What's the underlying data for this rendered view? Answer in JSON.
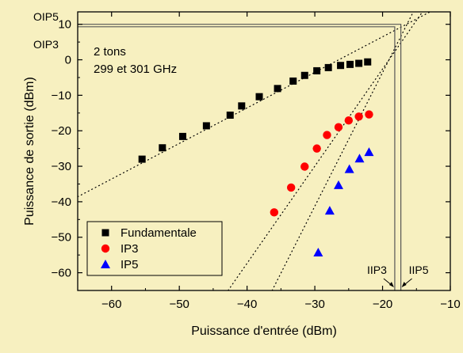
{
  "chart_data": {
    "type": "scatter",
    "xlabel": "Puissance d'entrée (dBm)",
    "ylabel": "Puissance de sortie (dBm)",
    "xlim": [
      -65,
      -10
    ],
    "ylim": [
      -65,
      13.5
    ],
    "x_ticks": [
      -60,
      -50,
      -40,
      -30,
      -20,
      -10
    ],
    "y_ticks": [
      10,
      0,
      -10,
      -20,
      -30,
      -40,
      -50,
      -60
    ],
    "annotation": {
      "line1": "2 tons",
      "line2": "299 et 301 GHz"
    },
    "legend_position": "lower-left",
    "series": [
      {
        "name": "Fundamentale",
        "marker": "square",
        "color": "#000000",
        "x": [
          -55.5,
          -52.5,
          -49.5,
          -46.0,
          -42.5,
          -40.8,
          -38.2,
          -35.5,
          -33.2,
          -31.5,
          -29.7,
          -28.0,
          -26.2,
          -24.8,
          -23.5,
          -22.2
        ],
        "y": [
          -28.0,
          -24.8,
          -21.6,
          -18.6,
          -15.6,
          -13.0,
          -10.4,
          -8.1,
          -6.0,
          -4.4,
          -3.1,
          -2.2,
          -1.6,
          -1.3,
          -1.0,
          -0.6
        ],
        "fit_line": {
          "x": [
            -65,
            -10
          ],
          "y": [
            -38.6,
            16.5
          ]
        }
      },
      {
        "name": "IP3",
        "marker": "circle",
        "color": "#ff0000",
        "x": [
          -36.0,
          -33.5,
          -31.5,
          -29.7,
          -28.2,
          -26.5,
          -25.0,
          -23.5,
          -22.0
        ],
        "y": [
          -43.0,
          -36.0,
          -30.1,
          -25.0,
          -21.2,
          -19.0,
          -17.1,
          -16.0,
          -15.4
        ],
        "fit_line": {
          "x": [
            -42.8,
            -14.3
          ],
          "y": [
            -65,
            13
          ]
        }
      },
      {
        "name": "IP5",
        "marker": "triangle",
        "color": "#0000ff",
        "x": [
          -29.5,
          -27.8,
          -26.5,
          -24.9,
          -23.4,
          -22.0
        ],
        "y": [
          -54.3,
          -42.5,
          -35.3,
          -30.8,
          -27.8,
          -26.0
        ],
        "fit_line": {
          "x": [
            -36.3,
            -15.6
          ],
          "y": [
            -65,
            13
          ]
        }
      }
    ],
    "intercepts": [
      {
        "label": "OIP5",
        "y": 10,
        "iip_label": "IIP5",
        "x": -17.3
      },
      {
        "label": "OIP3",
        "y": 9.3,
        "iip_label": "IIP3",
        "x": -18.2
      }
    ]
  }
}
